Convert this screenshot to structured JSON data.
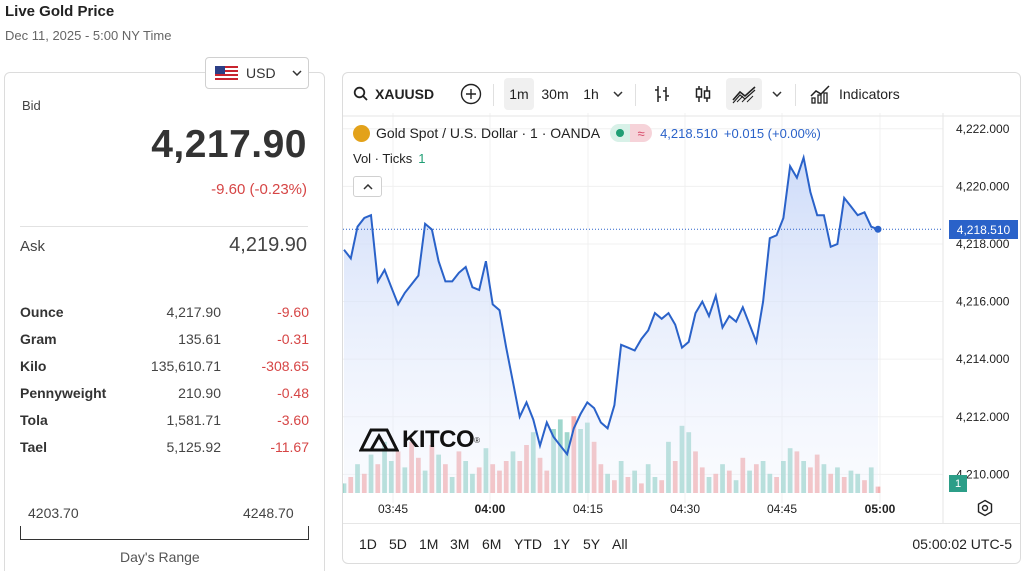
{
  "header": {
    "title": "Live Gold Price",
    "subtitle": "Dec 11, 2025 - 5:00 NY Time"
  },
  "currency": {
    "selected": "USD",
    "flag_icon": "us-flag-icon"
  },
  "quote": {
    "bid_label": "Bid",
    "bid": "4,217.90",
    "change": "-9.60 (-0.23%)",
    "ask_label": "Ask",
    "ask": "4,219.90"
  },
  "units": [
    {
      "name": "Ounce",
      "price": "4,217.90",
      "change": "-9.60"
    },
    {
      "name": "Gram",
      "price": "135.61",
      "change": "-0.31"
    },
    {
      "name": "Kilo",
      "price": "135,610.71",
      "change": "-308.65"
    },
    {
      "name": "Pennyweight",
      "price": "210.90",
      "change": "-0.48"
    },
    {
      "name": "Tola",
      "price": "1,581.71",
      "change": "-3.60"
    },
    {
      "name": "Tael",
      "price": "5,125.92",
      "change": "-11.67"
    }
  ],
  "days_range": {
    "low": "4203.70",
    "high": "4248.70",
    "label": "Day's Range"
  },
  "toolbar": {
    "symbol": "XAUUSD",
    "intervals": [
      "1m",
      "30m",
      "1h"
    ],
    "active_interval": "1m",
    "indicators_label": "Indicators"
  },
  "legend": {
    "title": "Gold Spot / U.S. Dollar · 1 · OANDA",
    "price": "4,218.510",
    "change": "+0.015 (+0.00%)",
    "vol_label": "Vol · Ticks",
    "vol_value": "1"
  },
  "price_tag": "4,218.510",
  "volume_tag": "1",
  "logo_text": "KITCO",
  "ranges": [
    "1D",
    "5D",
    "1M",
    "3M",
    "6M",
    "YTD",
    "1Y",
    "5Y",
    "All"
  ],
  "clock": "05:00:02 UTC-5",
  "colors": {
    "line": "#2a62c9",
    "area": "#dde6fb",
    "up_volume": "#8fd0c4",
    "down_volume": "#f2a3a3",
    "negative": "#d64545"
  },
  "chart_data": {
    "type": "area",
    "title": "Gold Spot / U.S. Dollar · 1 · OANDA",
    "xlabel": "",
    "ylabel": "",
    "x_ticks": [
      "03:45",
      "04:00",
      "04:15",
      "04:30",
      "04:45",
      "05:00"
    ],
    "x_bold_ticks": [
      "04:00",
      "05:00"
    ],
    "y_ticks": [
      "4,222.000",
      "4,220.000",
      "4,218.000",
      "4,216.000",
      "4,214.000",
      "4,212.000",
      "4,210.000"
    ],
    "ylim": [
      4209.7,
      4222.2
    ],
    "x_start": "03:40",
    "x_end": "04:59",
    "last_price": 4218.51,
    "series": [
      {
        "values": [
          4217.8,
          4217.5,
          4218.6,
          4218.9,
          4219.0,
          4216.7,
          4217.1,
          4216.5,
          4215.9,
          4216.3,
          4216.6,
          4216.9,
          4218.7,
          4218.5,
          4217.4,
          4216.7,
          4216.7,
          4217.0,
          4217.2,
          4216.5,
          4216.4,
          4217.4,
          4215.9,
          4215.7,
          4214.4,
          4213.2,
          4212.0,
          4212.5,
          4211.9,
          4211.0,
          4211.8,
          4211.3,
          4211.0,
          4210.7,
          4211.6,
          4212.1,
          4212.5,
          4212.3,
          4211.8,
          4211.6,
          4212.4,
          4214.5,
          4214.4,
          4214.3,
          4214.7,
          4215.0,
          4215.6,
          4215.4,
          4215.6,
          4215.2,
          4214.4,
          4214.6,
          4215.6,
          4216.0,
          4215.5,
          4216.2,
          4215.1,
          4215.5,
          4215.3,
          4215.8,
          4215.2,
          4214.6,
          4216.0,
          4218.2,
          4218.3,
          4218.9,
          4220.7,
          4220.3,
          4221.0,
          4219.8,
          4219.0,
          4219.0,
          4217.9,
          4218.0,
          4219.6,
          4219.3,
          4219.0,
          4219.1,
          4218.6,
          4218.51
        ]
      }
    ],
    "volume": [
      0.3,
      0.5,
      0.9,
      0.6,
      1.2,
      0.9,
      1.6,
      1.0,
      1.3,
      0.8,
      1.6,
      1.1,
      0.7,
      1.5,
      1.2,
      0.9,
      0.5,
      1.3,
      1.0,
      0.6,
      0.8,
      1.4,
      0.9,
      0.7,
      1.0,
      1.3,
      1.0,
      1.5,
      1.9,
      1.1,
      0.7,
      2.0,
      2.3,
      1.9,
      2.4,
      2.0,
      2.2,
      1.6,
      0.9,
      0.6,
      0.4,
      1.0,
      0.5,
      0.7,
      0.3,
      0.9,
      0.5,
      0.4,
      1.6,
      1.0,
      2.1,
      1.9,
      1.3,
      0.8,
      0.5,
      0.6,
      0.9,
      0.7,
      0.4,
      1.1,
      0.7,
      0.9,
      1.0,
      0.6,
      0.5,
      1.0,
      1.4,
      1.3,
      1.0,
      0.8,
      1.2,
      0.9,
      0.6,
      0.8,
      0.5,
      0.7,
      0.6,
      0.4,
      0.8,
      0.2
    ],
    "volume_direction": [
      1,
      0,
      1,
      0,
      1,
      0,
      1,
      1,
      0,
      1,
      0,
      0,
      1,
      0,
      1,
      0,
      1,
      0,
      1,
      1,
      0,
      1,
      0,
      0,
      0,
      1,
      0,
      0,
      1,
      0,
      0,
      1,
      1,
      1,
      0,
      1,
      1,
      0,
      0,
      1,
      0,
      1,
      0,
      1,
      0,
      1,
      1,
      0,
      1,
      0,
      1,
      1,
      0,
      0,
      1,
      0,
      1,
      0,
      1,
      0,
      1,
      0,
      1,
      1,
      0,
      1,
      1,
      0,
      1,
      0,
      0,
      1,
      0,
      1,
      0,
      1,
      1,
      0,
      1,
      0
    ]
  }
}
